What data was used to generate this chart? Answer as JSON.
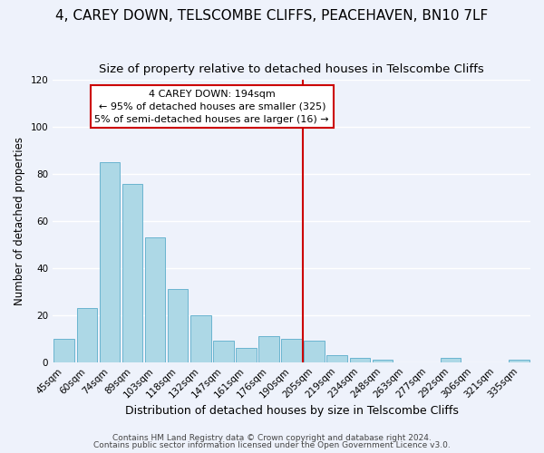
{
  "title": "4, CAREY DOWN, TELSCOMBE CLIFFS, PEACEHAVEN, BN10 7LF",
  "subtitle": "Size of property relative to detached houses in Telscombe Cliffs",
  "xlabel": "Distribution of detached houses by size in Telscombe Cliffs",
  "ylabel": "Number of detached properties",
  "categories": [
    "45sqm",
    "60sqm",
    "74sqm",
    "89sqm",
    "103sqm",
    "118sqm",
    "132sqm",
    "147sqm",
    "161sqm",
    "176sqm",
    "190sqm",
    "205sqm",
    "219sqm",
    "234sqm",
    "248sqm",
    "263sqm",
    "277sqm",
    "292sqm",
    "306sqm",
    "321sqm",
    "335sqm"
  ],
  "values": [
    10,
    23,
    85,
    76,
    53,
    31,
    20,
    9,
    6,
    11,
    10,
    9,
    3,
    2,
    1,
    0,
    0,
    2,
    0,
    0,
    1
  ],
  "bar_color": "#add8e6",
  "bar_edge_color": "#6ab4d0",
  "vline_x_index": 10,
  "vline_color": "#cc0000",
  "ylim": [
    0,
    120
  ],
  "annotation_title": "4 CAREY DOWN: 194sqm",
  "annotation_line1": "← 95% of detached houses are smaller (325)",
  "annotation_line2": "5% of semi-detached houses are larger (16) →",
  "annotation_box_color": "#ffffff",
  "annotation_box_edge": "#cc0000",
  "footer1": "Contains HM Land Registry data © Crown copyright and database right 2024.",
  "footer2": "Contains public sector information licensed under the Open Government Licence v3.0.",
  "background_color": "#eef2fb",
  "grid_color": "#ffffff",
  "title_fontsize": 11,
  "subtitle_fontsize": 9.5,
  "xlabel_fontsize": 9,
  "ylabel_fontsize": 8.5,
  "tick_fontsize": 7.5,
  "footer_fontsize": 6.5
}
